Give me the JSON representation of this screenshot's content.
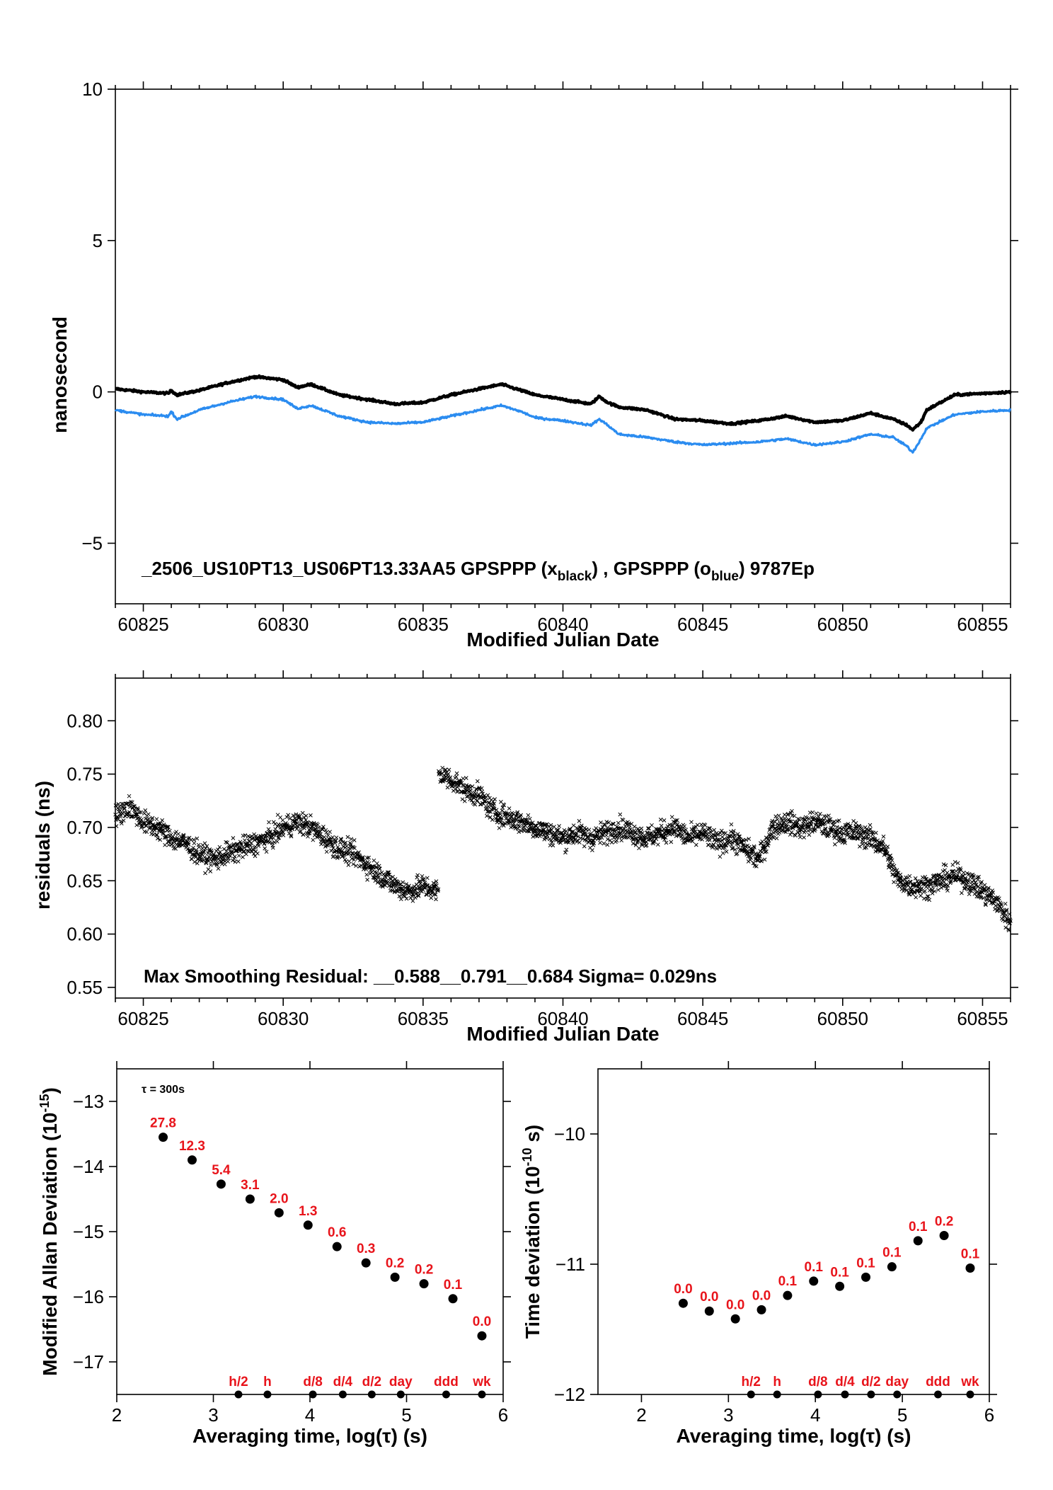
{
  "chart_data": [
    {
      "type": "line",
      "id": "phase",
      "ylabel": "nanosecond",
      "xlabel": "Modified Julian Date",
      "xlim": [
        60824,
        60856
      ],
      "ylim": [
        -7,
        10
      ],
      "xticks": [
        60825,
        60830,
        60835,
        60840,
        60845,
        60850,
        60855
      ],
      "yticks": [
        -5,
        0,
        5,
        10
      ],
      "yticklabels": [
        "−5",
        "0",
        "5",
        "10"
      ],
      "annotation": {
        "prefix": "_2506_US10PT13_US06PT13.33AA5    GPSPPP (x",
        "sub1": "black",
        "middle": ") ,  GPSPPP (o",
        "sub2": "blue",
        "suffix": ")  9787Ep"
      },
      "series": [
        {
          "color": "#000000",
          "x": [
            60824,
            60825,
            60825.9,
            60826,
            60826.2,
            60827,
            60828,
            60829,
            60830,
            60830.5,
            60831,
            60832,
            60833,
            60834,
            60835,
            60836,
            60837,
            60837.8,
            60838.5,
            60839,
            60840,
            60841,
            60841.3,
            60841.6,
            60842,
            60843,
            60844,
            60845,
            60846,
            60847,
            60848,
            60849,
            60850,
            60851,
            60851.8,
            60852.3,
            60852.5,
            60852.8,
            60853,
            60854,
            60855,
            60856
          ],
          "y": [
            0.1,
            0.0,
            -0.05,
            0.05,
            -0.1,
            0.05,
            0.3,
            0.5,
            0.4,
            0.15,
            0.25,
            -0.1,
            -0.25,
            -0.4,
            -0.35,
            -0.1,
            0.1,
            0.25,
            0.05,
            -0.1,
            -0.25,
            -0.4,
            -0.15,
            -0.35,
            -0.5,
            -0.6,
            -0.9,
            -0.95,
            -1.05,
            -0.95,
            -0.8,
            -1.0,
            -0.95,
            -0.7,
            -0.9,
            -1.1,
            -1.25,
            -1.0,
            -0.6,
            -0.1,
            -0.05,
            0.0
          ]
        },
        {
          "color": "#2b8cf0",
          "x": [
            60824,
            60825,
            60825.9,
            60826,
            60826.2,
            60827,
            60828,
            60829,
            60830,
            60830.5,
            60831,
            60832,
            60833,
            60834,
            60835,
            60836,
            60837,
            60837.8,
            60838.5,
            60839,
            60840,
            60841,
            60841.3,
            60841.6,
            60842,
            60843,
            60844,
            60845,
            60846,
            60847,
            60848,
            60849,
            60850,
            60851,
            60851.8,
            60852.3,
            60852.5,
            60852.8,
            60853,
            60854,
            60855,
            60856
          ],
          "y": [
            -0.6,
            -0.75,
            -0.8,
            -0.65,
            -0.9,
            -0.6,
            -0.35,
            -0.15,
            -0.25,
            -0.55,
            -0.45,
            -0.8,
            -1.0,
            -1.05,
            -1.0,
            -0.8,
            -0.6,
            -0.45,
            -0.65,
            -0.85,
            -0.95,
            -1.1,
            -0.9,
            -1.1,
            -1.4,
            -1.5,
            -1.65,
            -1.75,
            -1.7,
            -1.65,
            -1.55,
            -1.75,
            -1.65,
            -1.4,
            -1.5,
            -1.8,
            -2.0,
            -1.55,
            -1.2,
            -0.75,
            -0.65,
            -0.6
          ]
        }
      ]
    },
    {
      "type": "scatter",
      "id": "residuals",
      "ylabel": "residuals (ns)",
      "xlabel": "Modified Julian Date",
      "xlim": [
        60824,
        60856
      ],
      "ylim": [
        0.54,
        0.84
      ],
      "xticks": [
        60825,
        60830,
        60835,
        60840,
        60845,
        60850,
        60855
      ],
      "yticks": [
        0.55,
        0.6,
        0.65,
        0.7,
        0.75,
        0.8
      ],
      "yticklabels": [
        "0.55",
        "0.60",
        "0.65",
        "0.70",
        "0.75",
        "0.80"
      ],
      "annotation": "Max Smoothing Residual: __0.588__0.791__0.684  Sigma= 0.029ns",
      "marker": "x",
      "color": "#000000",
      "x": [
        60824,
        60824.5,
        60825,
        60825.5,
        60826,
        60826.5,
        60827,
        60827.5,
        60828,
        60828.5,
        60829,
        60829.5,
        60830,
        60830.5,
        60831,
        60831.5,
        60832,
        60832.5,
        60833,
        60833.5,
        60834,
        60834.5,
        60835,
        60835.5,
        60835.6,
        60836,
        60836.5,
        60837,
        60837.5,
        60838,
        60838.5,
        60839,
        60839.5,
        60840,
        60840.5,
        60841,
        60841.5,
        60842,
        60842.5,
        60843,
        60843.5,
        60844,
        60844.5,
        60845,
        60845.5,
        60846,
        60846.5,
        60847,
        60847.5,
        60848,
        60848.5,
        60849,
        60849.5,
        60850,
        60850.5,
        60851,
        60851.5,
        60851.8,
        60852,
        60852.5,
        60853,
        60853.5,
        60854,
        60854.5,
        60855,
        60855.5,
        60856
      ],
      "y": [
        0.71,
        0.72,
        0.705,
        0.7,
        0.69,
        0.685,
        0.675,
        0.67,
        0.675,
        0.68,
        0.685,
        0.69,
        0.7,
        0.705,
        0.7,
        0.69,
        0.68,
        0.675,
        0.665,
        0.655,
        0.645,
        0.64,
        0.645,
        0.64,
        0.75,
        0.745,
        0.735,
        0.73,
        0.715,
        0.71,
        0.705,
        0.7,
        0.695,
        0.69,
        0.695,
        0.69,
        0.695,
        0.7,
        0.695,
        0.69,
        0.695,
        0.7,
        0.69,
        0.695,
        0.685,
        0.69,
        0.68,
        0.67,
        0.7,
        0.705,
        0.7,
        0.705,
        0.7,
        0.695,
        0.695,
        0.69,
        0.68,
        0.66,
        0.65,
        0.645,
        0.645,
        0.65,
        0.655,
        0.65,
        0.64,
        0.63,
        0.61
      ]
    },
    {
      "type": "scatter",
      "id": "mdev",
      "ylabel_text": "Modified Allan Deviation (10",
      "ylabel_sup": "-15",
      "ylabel_end": ")",
      "xlabel": "Averaging time, log(τ) (s)",
      "xlim": [
        2,
        6
      ],
      "ylim": [
        -17.5,
        -12.5
      ],
      "xticks": [
        2,
        3,
        4,
        5,
        6
      ],
      "yticks": [
        -17,
        -16,
        -15,
        -14,
        -13
      ],
      "yticklabels": [
        "−17",
        "−16",
        "−15",
        "−14",
        "−13"
      ],
      "tau_note": "τ = 300s",
      "x": [
        2.48,
        2.78,
        3.08,
        3.38,
        3.68,
        3.98,
        4.28,
        4.58,
        4.88,
        5.18,
        5.48,
        5.78
      ],
      "y": [
        -13.55,
        -13.9,
        -14.27,
        -14.5,
        -14.71,
        -14.9,
        -15.23,
        -15.48,
        -15.7,
        -15.8,
        -16.03,
        -16.6
      ],
      "point_labels": [
        "27.8",
        "12.3",
        "5.4",
        "3.1",
        "2.0",
        "1.3",
        "0.6",
        "0.3",
        "0.2",
        "0.2",
        "0.1",
        "0.0"
      ],
      "markers": {
        "labels": [
          "h/2",
          "h",
          "d/8",
          "d/4",
          "d/2",
          "day",
          "ddd",
          "wk"
        ],
        "x": [
          3.26,
          3.56,
          4.03,
          4.34,
          4.64,
          4.94,
          5.41,
          5.78
        ]
      }
    },
    {
      "type": "scatter",
      "id": "tdev",
      "ylabel_text": "Time deviation (10",
      "ylabel_sup": "-10",
      "ylabel_end": " s)",
      "xlabel": "Averaging time, log(τ) (s)",
      "xlim": [
        1.5,
        6
      ],
      "ylim": [
        -12,
        -9.5
      ],
      "xticks": [
        2,
        3,
        4,
        5,
        6
      ],
      "yticks": [
        -12,
        -11,
        -10
      ],
      "yticklabels": [
        "−12",
        "−11",
        "−10"
      ],
      "x": [
        2.48,
        2.78,
        3.08,
        3.38,
        3.68,
        3.98,
        4.28,
        4.58,
        4.88,
        5.18,
        5.48,
        5.78
      ],
      "y": [
        -11.3,
        -11.36,
        -11.42,
        -11.35,
        -11.24,
        -11.13,
        -11.17,
        -11.1,
        -11.02,
        -10.82,
        -10.78,
        -11.03
      ],
      "point_labels": [
        "0.0",
        "0.0",
        "0.0",
        "0.0",
        "0.1",
        "0.1",
        "0.1",
        "0.1",
        "0.1",
        "0.1",
        "0.2",
        "0.1"
      ],
      "markers": {
        "labels": [
          "h/2",
          "h",
          "d/8",
          "d/4",
          "d/2",
          "day",
          "ddd",
          "wk"
        ],
        "x": [
          3.26,
          3.56,
          4.03,
          4.34,
          4.64,
          4.94,
          5.41,
          5.78
        ]
      }
    }
  ]
}
